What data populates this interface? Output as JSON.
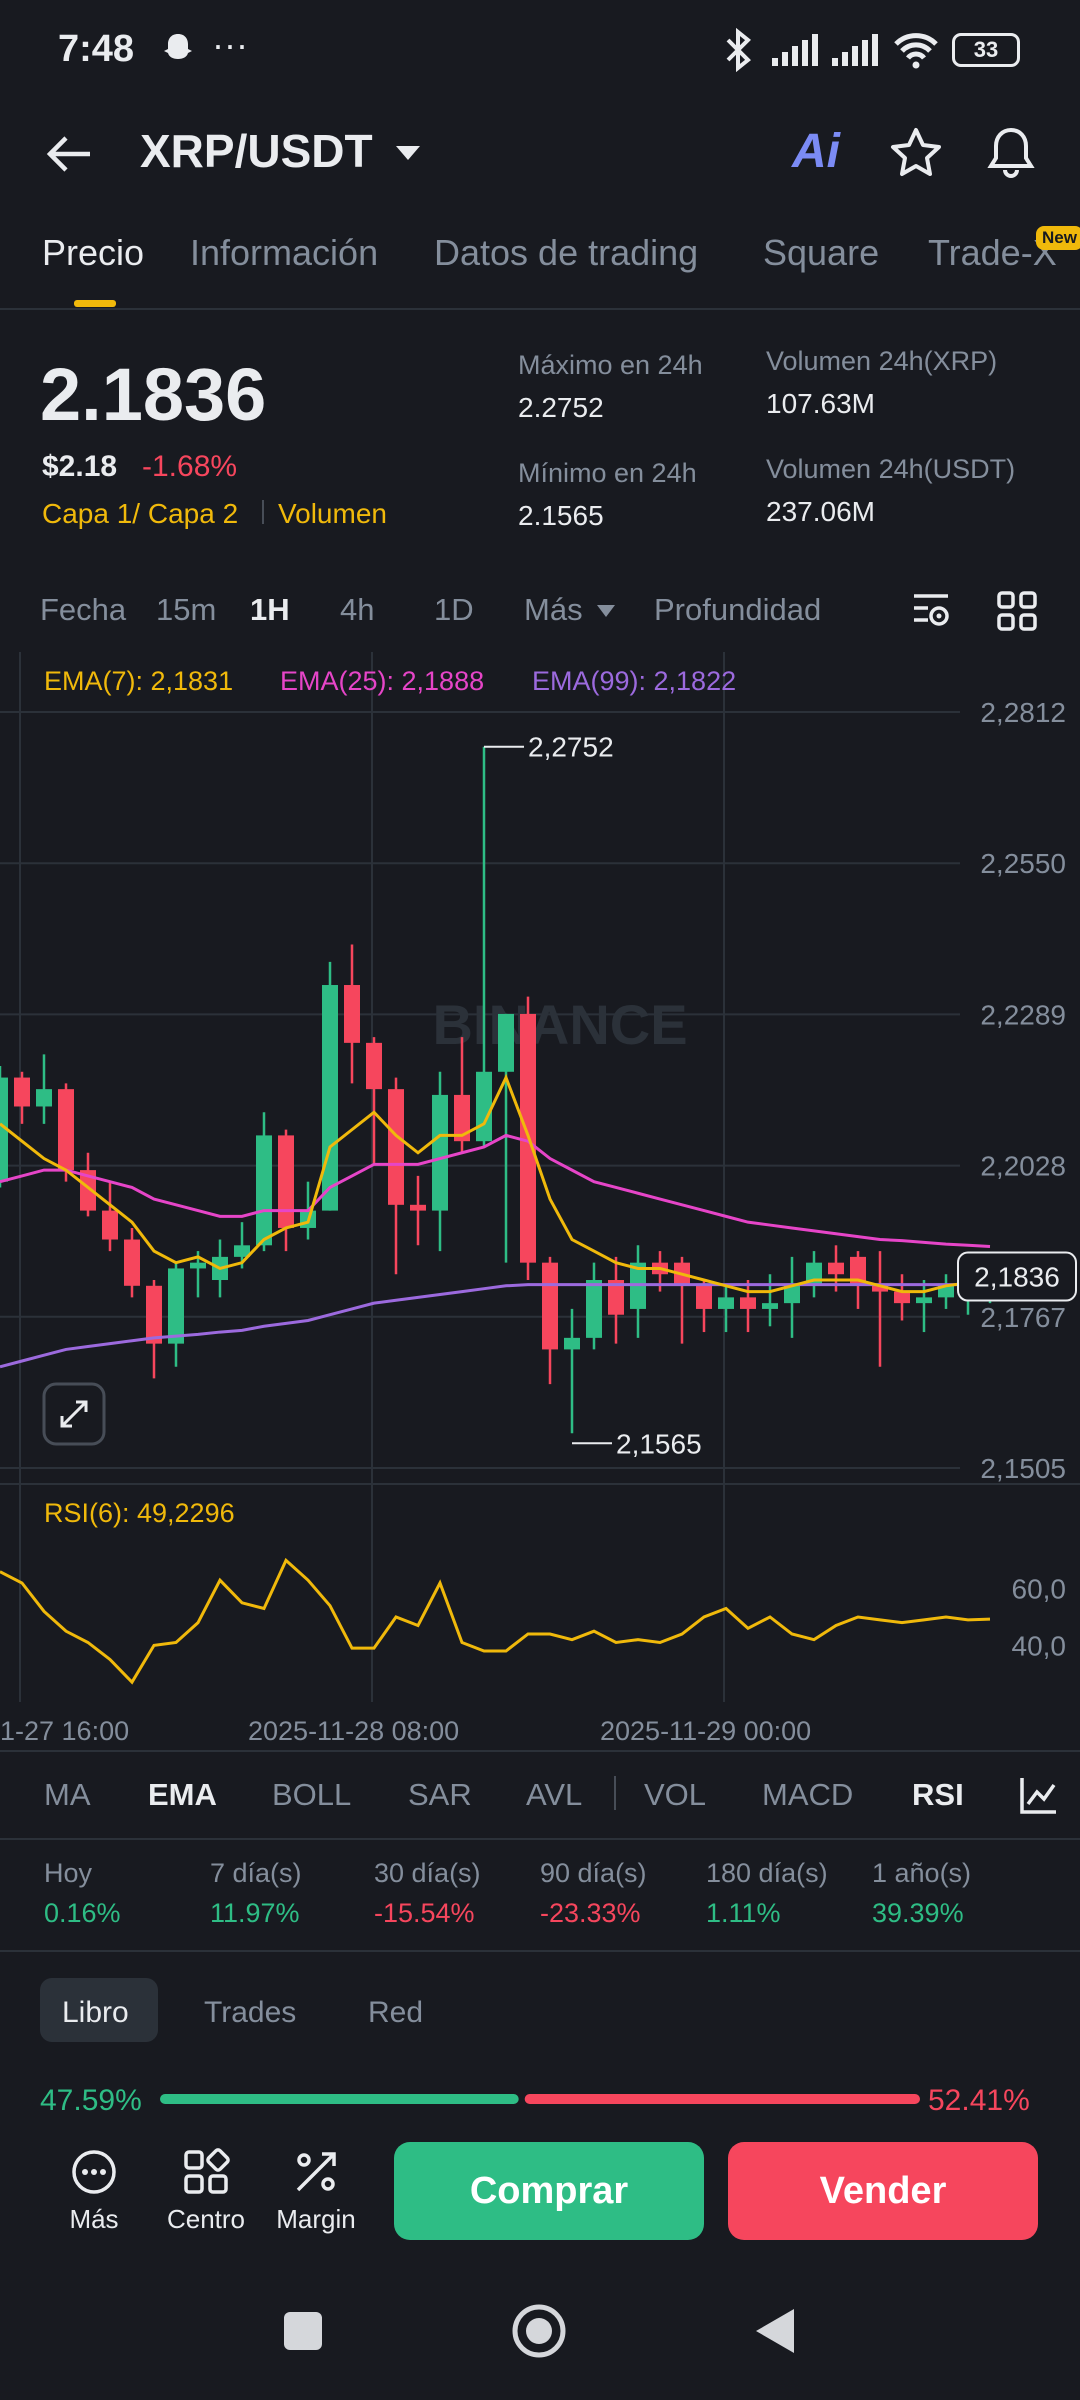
{
  "status": {
    "time": "7:48",
    "battery": "33"
  },
  "header": {
    "pair": "XRP/USDT",
    "ai_label": "Ai"
  },
  "tabs": [
    "Precio",
    "Información",
    "Datos de trading",
    "Square",
    "Trade-X"
  ],
  "tab_badge": "New",
  "price": {
    "last": "2.1836",
    "usd": "$2.18",
    "change": "-1.68%",
    "tag1": "Capa 1/ Capa 2",
    "tag2": "Volumen",
    "high_label": "Máximo en 24h",
    "high": "2.2752",
    "low_label": "Mínimo en 24h",
    "low": "2.1565",
    "vol_xrp_label": "Volumen 24h(XRP)",
    "vol_xrp": "107.63M",
    "vol_usdt_label": "Volumen 24h(USDT)",
    "vol_usdt": "237.06M"
  },
  "timeframes": [
    "Fecha",
    "15m",
    "1H",
    "4h",
    "1D",
    "Más",
    "Profundidad"
  ],
  "ema_legend": {
    "ema7": "EMA(7): 2,1831",
    "ema25": "EMA(25): 2,1888",
    "ema99": "EMA(99): 2,1822"
  },
  "watermark": "BINANCE",
  "y_ticks": [
    "2,2812",
    "2,2550",
    "2,2289",
    "2,2028",
    "2,1767",
    "2,1505"
  ],
  "current_price_tag": "2,1836",
  "high_marker": "2,2752",
  "low_marker": "2,1565",
  "rsi": {
    "legend": "RSI(6): 49,2296",
    "ticks": [
      "60,0",
      "40,0"
    ]
  },
  "x_labels": [
    "1-27 16:00",
    "2025-11-28 08:00",
    "2025-11-29 00:00"
  ],
  "indicators": [
    "MA",
    "EMA",
    "BOLL",
    "SAR",
    "AVL",
    "VOL",
    "MACD",
    "RSI"
  ],
  "performance": [
    {
      "label": "Hoy",
      "value": "0.16%",
      "dir": "up"
    },
    {
      "label": "7 día(s)",
      "value": "11.97%",
      "dir": "up"
    },
    {
      "label": "30 día(s)",
      "value": "-15.54%",
      "dir": "down"
    },
    {
      "label": "90 día(s)",
      "value": "-23.33%",
      "dir": "down"
    },
    {
      "label": "180 día(s)",
      "value": "1.11%",
      "dir": "up"
    },
    {
      "label": "1 año(s)",
      "value": "39.39%",
      "dir": "up"
    }
  ],
  "book_tabs": [
    "Libro",
    "Trades",
    "Red"
  ],
  "book_ratio": {
    "buy": "47.59%",
    "sell": "52.41%",
    "buy_fraction": 0.4759
  },
  "bottom": {
    "more": "Más",
    "center": "Centro",
    "margin": "Margin",
    "buy": "Comprar",
    "sell": "Vender"
  },
  "colors": {
    "bg": "#181A20",
    "up": "#2EBD85",
    "down": "#F6465D",
    "accent": "#F0B90B",
    "ema7": "#F0B90B",
    "ema25": "#E645C8",
    "ema99": "#9C6ADE"
  },
  "chart_data": {
    "type": "candlestick",
    "ylim": [
      2.1505,
      2.2812
    ],
    "candles": [
      {
        "o": 2.2,
        "c": 2.218,
        "h": 2.22,
        "l": 2.199
      },
      {
        "o": 2.218,
        "c": 2.213,
        "h": 2.219,
        "l": 2.21
      },
      {
        "o": 2.213,
        "c": 2.216,
        "h": 2.222,
        "l": 2.21
      },
      {
        "o": 2.216,
        "c": 2.202,
        "h": 2.217,
        "l": 2.2
      },
      {
        "o": 2.202,
        "c": 2.195,
        "h": 2.205,
        "l": 2.194
      },
      {
        "o": 2.195,
        "c": 2.19,
        "h": 2.2,
        "l": 2.188
      },
      {
        "o": 2.19,
        "c": 2.182,
        "h": 2.192,
        "l": 2.18
      },
      {
        "o": 2.182,
        "c": 2.172,
        "h": 2.183,
        "l": 2.166
      },
      {
        "o": 2.172,
        "c": 2.185,
        "h": 2.186,
        "l": 2.168
      },
      {
        "o": 2.185,
        "c": 2.186,
        "h": 2.188,
        "l": 2.18
      },
      {
        "o": 2.183,
        "c": 2.187,
        "h": 2.19,
        "l": 2.18
      },
      {
        "o": 2.187,
        "c": 2.189,
        "h": 2.193,
        "l": 2.185
      },
      {
        "o": 2.189,
        "c": 2.208,
        "h": 2.212,
        "l": 2.188
      },
      {
        "o": 2.208,
        "c": 2.192,
        "h": 2.209,
        "l": 2.188
      },
      {
        "o": 2.192,
        "c": 2.195,
        "h": 2.2,
        "l": 2.19
      },
      {
        "o": 2.195,
        "c": 2.234,
        "h": 2.238,
        "l": 2.195
      },
      {
        "o": 2.234,
        "c": 2.224,
        "h": 2.241,
        "l": 2.217
      },
      {
        "o": 2.224,
        "c": 2.216,
        "h": 2.225,
        "l": 2.203
      },
      {
        "o": 2.216,
        "c": 2.196,
        "h": 2.218,
        "l": 2.184
      },
      {
        "o": 2.196,
        "c": 2.195,
        "h": 2.201,
        "l": 2.189
      },
      {
        "o": 2.195,
        "c": 2.215,
        "h": 2.219,
        "l": 2.188
      },
      {
        "o": 2.215,
        "c": 2.207,
        "h": 2.225,
        "l": 2.205
      },
      {
        "o": 2.207,
        "c": 2.219,
        "h": 2.2752,
        "l": 2.206
      },
      {
        "o": 2.219,
        "c": 2.229,
        "h": 2.229,
        "l": 2.186
      },
      {
        "o": 2.229,
        "c": 2.186,
        "h": 2.232,
        "l": 2.183
      },
      {
        "o": 2.186,
        "c": 2.171,
        "h": 2.187,
        "l": 2.165
      },
      {
        "o": 2.171,
        "c": 2.173,
        "h": 2.178,
        "l": 2.1565
      },
      {
        "o": 2.173,
        "c": 2.183,
        "h": 2.186,
        "l": 2.171
      },
      {
        "o": 2.183,
        "c": 2.177,
        "h": 2.187,
        "l": 2.172
      },
      {
        "o": 2.178,
        "c": 2.186,
        "h": 2.189,
        "l": 2.173
      },
      {
        "o": 2.186,
        "c": 2.184,
        "h": 2.188,
        "l": 2.181
      },
      {
        "o": 2.186,
        "c": 2.182,
        "h": 2.187,
        "l": 2.172
      },
      {
        "o": 2.182,
        "c": 2.178,
        "h": 2.183,
        "l": 2.174
      },
      {
        "o": 2.178,
        "c": 2.18,
        "h": 2.182,
        "l": 2.174
      },
      {
        "o": 2.18,
        "c": 2.178,
        "h": 2.183,
        "l": 2.174
      },
      {
        "o": 2.178,
        "c": 2.179,
        "h": 2.184,
        "l": 2.175
      },
      {
        "o": 2.179,
        "c": 2.182,
        "h": 2.187,
        "l": 2.173
      },
      {
        "o": 2.182,
        "c": 2.186,
        "h": 2.188,
        "l": 2.18
      },
      {
        "o": 2.186,
        "c": 2.184,
        "h": 2.189,
        "l": 2.181
      },
      {
        "o": 2.187,
        "c": 2.182,
        "h": 2.188,
        "l": 2.178
      },
      {
        "o": 2.182,
        "c": 2.181,
        "h": 2.188,
        "l": 2.168
      },
      {
        "o": 2.181,
        "c": 2.179,
        "h": 2.184,
        "l": 2.176
      },
      {
        "o": 2.179,
        "c": 2.18,
        "h": 2.183,
        "l": 2.174
      },
      {
        "o": 2.18,
        "c": 2.182,
        "h": 2.184,
        "l": 2.178
      },
      {
        "o": 2.182,
        "c": 2.183,
        "h": 2.184,
        "l": 2.177
      },
      {
        "o": 2.183,
        "c": 2.1836,
        "h": 2.186,
        "l": 2.179
      }
    ],
    "ema7": [
      2.21,
      2.207,
      2.204,
      2.202,
      2.199,
      2.196,
      2.193,
      2.188,
      2.186,
      2.187,
      2.185,
      2.186,
      2.19,
      2.192,
      2.193,
      2.206,
      2.209,
      2.212,
      2.208,
      2.205,
      2.208,
      2.208,
      2.21,
      2.218,
      2.208,
      2.197,
      2.19,
      2.188,
      2.186,
      2.185,
      2.185,
      2.184,
      2.183,
      2.182,
      2.181,
      2.181,
      2.182,
      2.183,
      2.183,
      2.183,
      2.182,
      2.181,
      2.181,
      2.182,
      2.1825,
      2.1831
    ],
    "ema25": [
      2.2,
      2.201,
      2.202,
      2.202,
      2.201,
      2.2,
      2.199,
      2.197,
      2.196,
      2.195,
      2.194,
      2.194,
      2.195,
      2.195,
      2.195,
      2.199,
      2.201,
      2.203,
      2.203,
      2.203,
      2.204,
      2.205,
      2.206,
      2.208,
      2.207,
      2.204,
      2.202,
      2.2,
      2.199,
      2.198,
      2.197,
      2.196,
      2.195,
      2.194,
      2.193,
      2.1925,
      2.192,
      2.1915,
      2.191,
      2.1905,
      2.19,
      2.1898,
      2.1895,
      2.1892,
      2.189,
      2.1888
    ],
    "ema99": [
      2.168,
      2.169,
      2.17,
      2.171,
      2.1715,
      2.172,
      2.1725,
      2.173,
      2.1733,
      2.1736,
      2.174,
      2.1743,
      2.175,
      2.1755,
      2.176,
      2.177,
      2.178,
      2.179,
      2.1795,
      2.18,
      2.1805,
      2.181,
      2.1815,
      2.182,
      2.1822,
      2.1822,
      2.1822,
      2.1822,
      2.1822,
      2.1822,
      2.1822,
      2.1822,
      2.1822,
      2.1822,
      2.1822,
      2.1822,
      2.1822,
      2.1822,
      2.1822,
      2.1822,
      2.1822,
      2.1822,
      2.1822,
      2.1822,
      2.1822,
      2.1822
    ],
    "rsi": [
      66,
      62,
      52,
      45,
      41,
      35,
      27,
      40,
      41,
      48,
      63,
      55,
      53,
      70,
      63,
      54,
      39,
      39,
      50,
      47,
      62,
      41,
      38,
      38,
      44,
      44,
      42,
      45,
      41,
      42,
      41,
      44,
      50,
      53,
      46,
      50,
      44,
      42,
      47,
      50,
      49,
      48,
      49,
      50,
      49,
      49.2296
    ]
  }
}
